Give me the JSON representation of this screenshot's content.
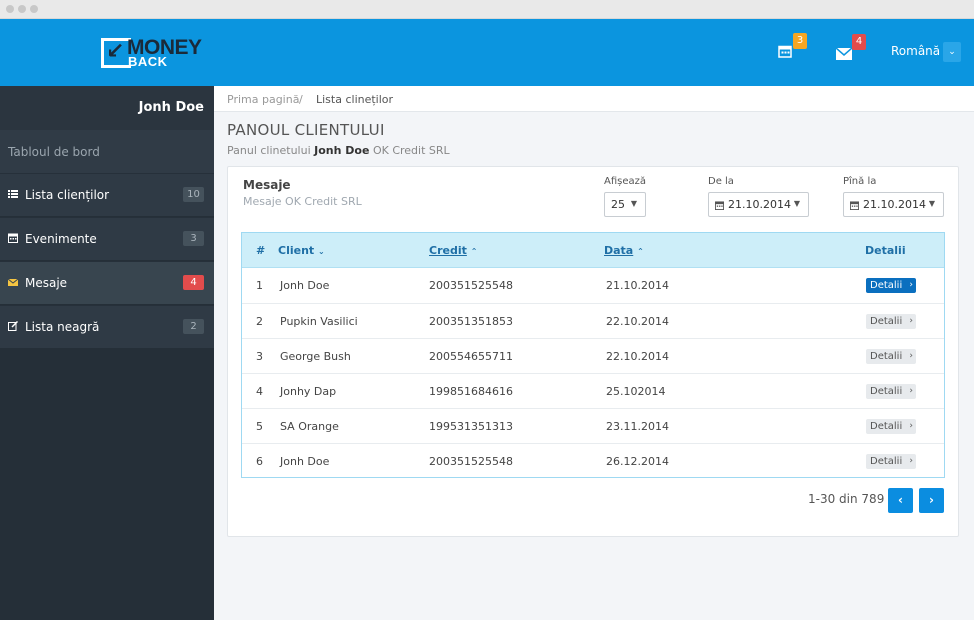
{
  "logo": {
    "word1": "MONEY",
    "word2": "BACK"
  },
  "header": {
    "calendar_badge": "3",
    "mail_badge": "4",
    "language": "Română",
    "colors": {
      "bar": "#0b95df",
      "calendar_badge": "#f5a623",
      "mail_badge": "#e24c4c"
    }
  },
  "sidebar": {
    "user": "Jonh Doe",
    "dashboard": "Tabloul de bord",
    "items": [
      {
        "label": "Lista clienților",
        "count": "10",
        "icon": "list-icon"
      },
      {
        "label": "Evenimente",
        "count": "3",
        "icon": "calendar-icon"
      },
      {
        "label": "Mesaje",
        "count": "4",
        "icon": "envelope-icon"
      },
      {
        "label": "Lista neagră",
        "count": "2",
        "icon": "edit-icon"
      }
    ]
  },
  "breadcrumb": {
    "home": "Prima pagină",
    "separator": "/",
    "current": "Lista clineților"
  },
  "page": {
    "title": "PANOUL CLIENTULUI",
    "subtitle_prefix": "Panul clinetului",
    "subtitle_name": "Jonh Doe",
    "subtitle_suffix": "OK Credit SRL"
  },
  "panel": {
    "title": "Mesaje",
    "subtitle": "Mesaje OK Credit SRL",
    "filters": {
      "show_label": "Afișează",
      "show_value": "25",
      "from_label": "De la",
      "from_value": "21.10.2014",
      "to_label": "Pînă la",
      "to_value": "21.10.2014"
    }
  },
  "table": {
    "headers": {
      "num": "#",
      "client": "Client",
      "credit": "Credit",
      "date": "Data",
      "details": "Detalii"
    },
    "rows": [
      {
        "num": "1",
        "client": "Jonh Doe",
        "credit": "200351525548",
        "date": "21.10.2014",
        "details": "Detalii"
      },
      {
        "num": "2",
        "client": "Pupkin Vasilici",
        "credit": "200351351853",
        "date": "22.10.2014",
        "details": "Detalii"
      },
      {
        "num": "3",
        "client": "George Bush",
        "credit": "200554655711",
        "date": "22.10.2014",
        "details": "Detalii"
      },
      {
        "num": "4",
        "client": "Jonhy Dap",
        "credit": "199851684616",
        "date": "25.102014",
        "details": "Detalii"
      },
      {
        "num": "5",
        "client": "SA Orange",
        "credit": "199531351313",
        "date": "23.11.2014",
        "details": "Detalii"
      },
      {
        "num": "6",
        "client": "Jonh Doe",
        "credit": "200351525548",
        "date": "26.12.2014",
        "details": "Detalii"
      }
    ]
  },
  "pagination": {
    "info": "1-30 din 789",
    "prev": "‹",
    "next": "›"
  }
}
